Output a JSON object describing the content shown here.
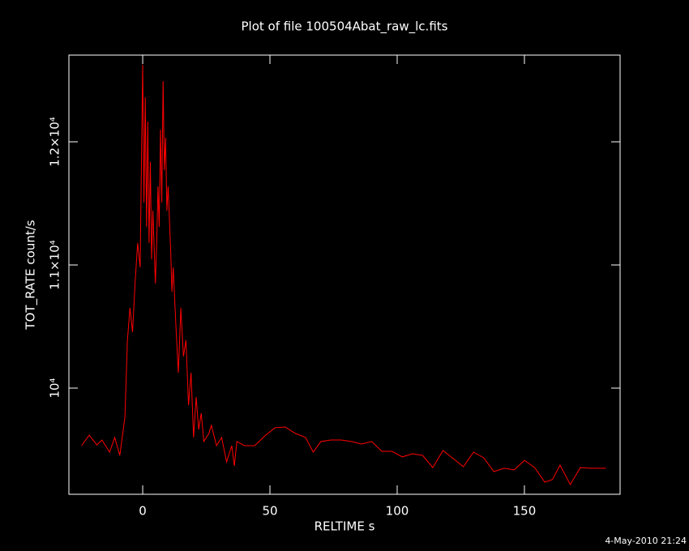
{
  "chart_data": {
    "type": "line",
    "title": "Plot of file 100504Abat_raw_lc.fits",
    "x_label": "RELTIME  s",
    "y_label": "TOT_RATE  count/s",
    "footer": "4-May-2010 21:24",
    "color": "#ff0000",
    "x": [
      -24,
      -21,
      -18,
      -16,
      -13,
      -11,
      -9,
      -7,
      -6,
      -5,
      -4,
      -3,
      -2,
      -1,
      -0.5,
      0,
      0.5,
      1,
      1.5,
      2,
      2.5,
      3,
      3.5,
      4,
      5,
      5.5,
      6,
      6.5,
      7,
      7.5,
      8,
      8.5,
      9,
      9.5,
      10,
      11,
      11.5,
      12,
      13,
      14,
      15,
      16,
      17,
      18,
      19,
      20,
      21,
      22,
      23,
      24,
      26,
      27,
      29,
      31,
      33,
      35,
      36,
      37,
      40,
      44,
      48,
      52,
      56,
      60,
      64,
      67,
      70,
      74,
      78,
      82,
      86,
      90,
      94,
      98,
      102,
      106,
      110,
      114,
      118,
      122,
      126,
      130,
      134,
      138,
      142,
      146,
      150,
      154,
      158,
      161,
      164,
      168,
      172,
      176,
      182
    ],
    "values": [
      9533,
      9618,
      9539,
      9579,
      9480,
      9599,
      9454,
      9763,
      10388,
      10651,
      10454,
      10849,
      11178,
      10980,
      11836,
      12625,
      11507,
      12362,
      11309,
      12164,
      11178,
      11836,
      11046,
      11441,
      10849,
      11178,
      11638,
      11309,
      12099,
      11507,
      12493,
      11770,
      12033,
      11441,
      11638,
      11112,
      10783,
      10980,
      10520,
      10125,
      10651,
      10257,
      10388,
      9862,
      10125,
      9599,
      9928,
      9664,
      9796,
      9566,
      9632,
      9697,
      9533,
      9599,
      9401,
      9533,
      9368,
      9566,
      9533,
      9533,
      9612,
      9678,
      9684,
      9632,
      9599,
      9480,
      9566,
      9579,
      9579,
      9566,
      9546,
      9566,
      9487,
      9487,
      9441,
      9467,
      9454,
      9355,
      9493,
      9428,
      9362,
      9480,
      9434,
      9322,
      9349,
      9336,
      9414,
      9355,
      9237,
      9257,
      9375,
      9217,
      9355,
      9349,
      9349
    ],
    "xlim": [
      -29,
      187.6
    ],
    "ylim": [
      9138,
      12704
    ],
    "xticks": [
      0,
      50,
      100,
      150
    ],
    "yticks": [
      {
        "value": 10000,
        "label": "10⁴"
      },
      {
        "value": 11000,
        "label": "1.1×10⁴"
      },
      {
        "value": 12000,
        "label": "1.2×10⁴"
      }
    ]
  }
}
